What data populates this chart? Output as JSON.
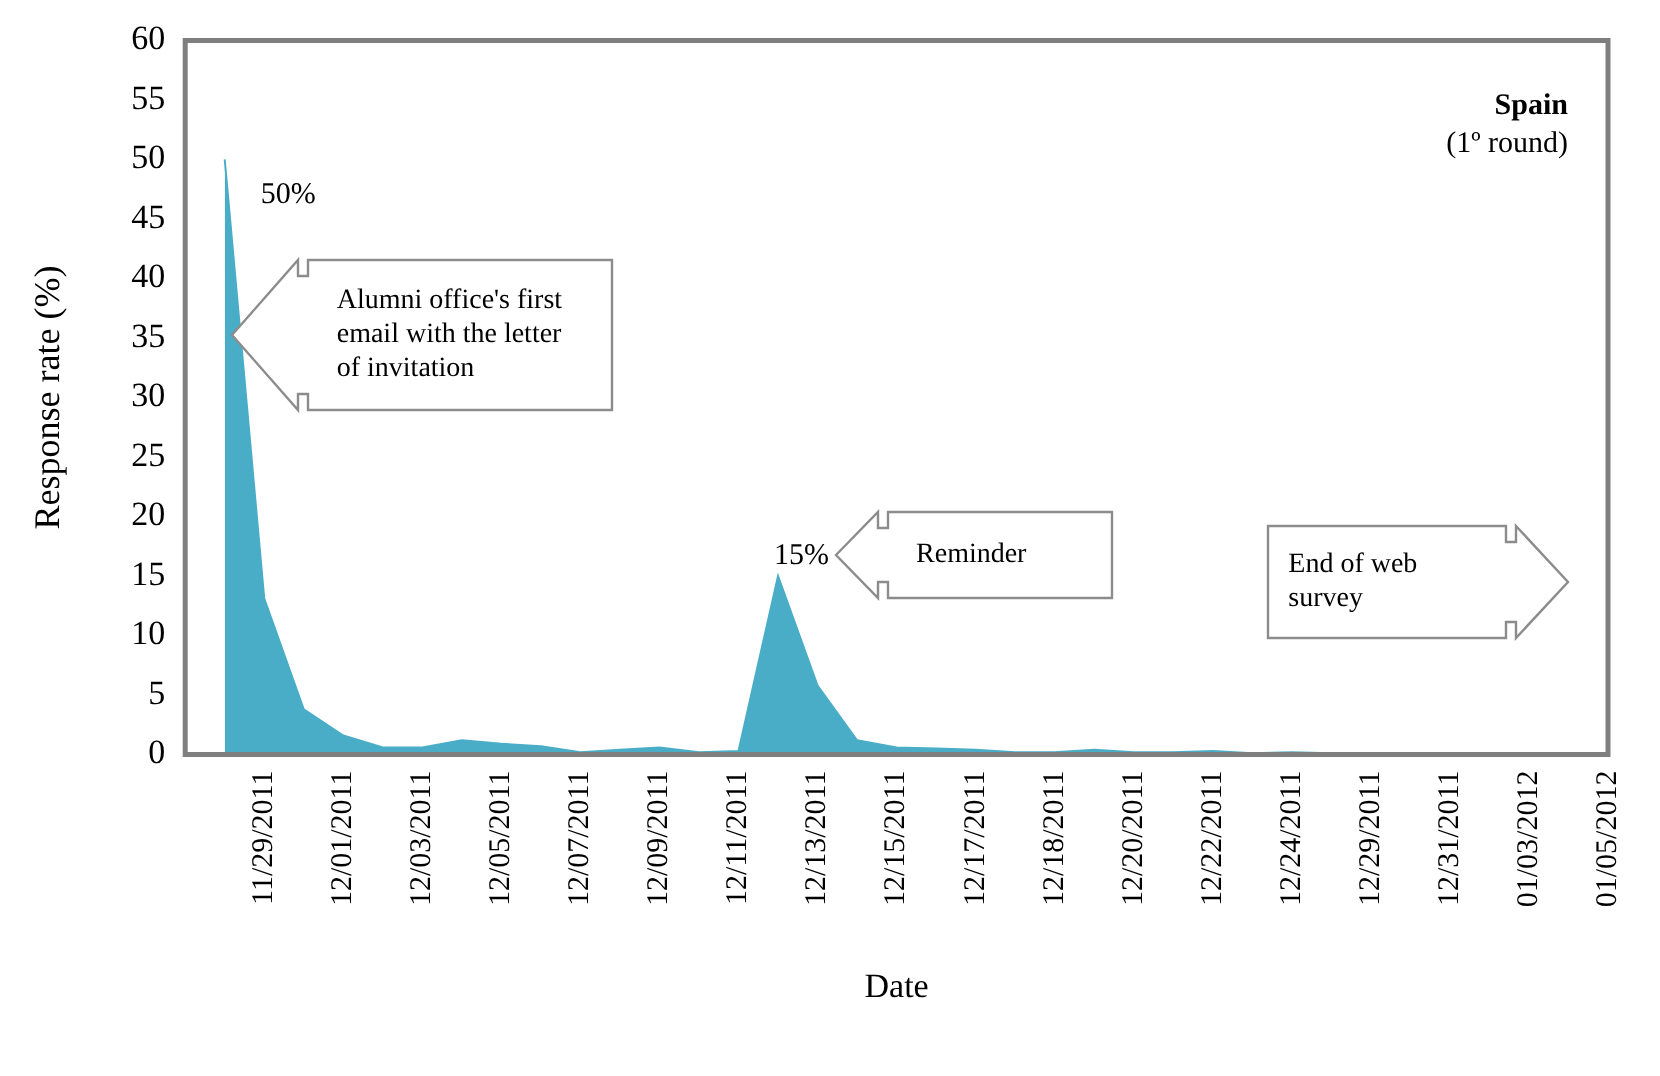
{
  "chart_data": {
    "type": "area",
    "title": "Spain",
    "subtitle": "(1º round)",
    "xlabel": "Date",
    "ylabel": "Response rate (%)",
    "categories": [
      null,
      "11/29/2011",
      null,
      "12/01/2011",
      null,
      "12/03/2011",
      null,
      "12/05/2011",
      null,
      "12/07/2011",
      null,
      "12/09/2011",
      null,
      "12/11/2011",
      null,
      "12/13/2011",
      null,
      "12/15/2011",
      null,
      "12/17/2011",
      null,
      "12/18/2011",
      null,
      "12/20/2011",
      null,
      "12/22/2011",
      null,
      "12/24/2011",
      null,
      "12/29/2011",
      null,
      "12/31/2011",
      null,
      "01/03/2012",
      null,
      "01/05/2012"
    ],
    "values": [
      50,
      13.1,
      3.8,
      1.6,
      0.6,
      0.6,
      1.2,
      0.9,
      0.7,
      0.2,
      0.4,
      0.6,
      0.2,
      0.3,
      15,
      5.8,
      1.2,
      0.6,
      0.5,
      0.4,
      0.2,
      0.2,
      0.4,
      0.2,
      0.2,
      0.3,
      0.1,
      0.2,
      0.1,
      0.1,
      0.1,
      0.1,
      0.1,
      0.1,
      0.1,
      0.1
    ],
    "color": "#4aadc7",
    "ylim": [
      0,
      60
    ],
    "yticks": [
      0,
      5,
      10,
      15,
      20,
      25,
      30,
      35,
      40,
      45,
      50,
      55,
      60
    ],
    "grid": false,
    "legend": false,
    "annotations": [
      "50%",
      "15%",
      "Alumni office's first email with the letter of invitation",
      "Reminder",
      "End of web survey"
    ]
  }
}
